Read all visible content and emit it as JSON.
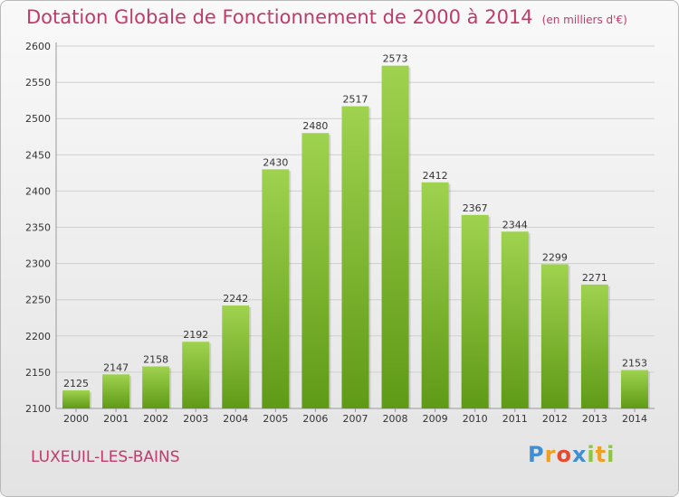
{
  "header": {
    "title": "Dotation Globale de Fonctionnement de 2000 à 2014",
    "unit": "(en milliers d'€)"
  },
  "footer": {
    "city": "LUXEUIL-LES-BAINS",
    "logo": "Proxiti"
  },
  "colors": {
    "title": "#c13a6a",
    "bar_top": "#9fd24f",
    "bar_bottom": "#5f9a16"
  },
  "chart_data": {
    "type": "bar",
    "title": "Dotation Globale de Fonctionnement de 2000 à 2014",
    "xlabel": "",
    "ylabel": "",
    "categories": [
      "2000",
      "2001",
      "2002",
      "2003",
      "2004",
      "2005",
      "2006",
      "2007",
      "2008",
      "2009",
      "2010",
      "2011",
      "2012",
      "2013",
      "2014"
    ],
    "values": [
      2125,
      2147,
      2158,
      2192,
      2242,
      2430,
      2480,
      2517,
      2573,
      2412,
      2367,
      2344,
      2299,
      2271,
      2153
    ],
    "ylim": [
      2100,
      2600
    ],
    "yticks": [
      2100,
      2150,
      2200,
      2250,
      2300,
      2350,
      2400,
      2450,
      2500,
      2550,
      2600
    ],
    "grid": true
  }
}
